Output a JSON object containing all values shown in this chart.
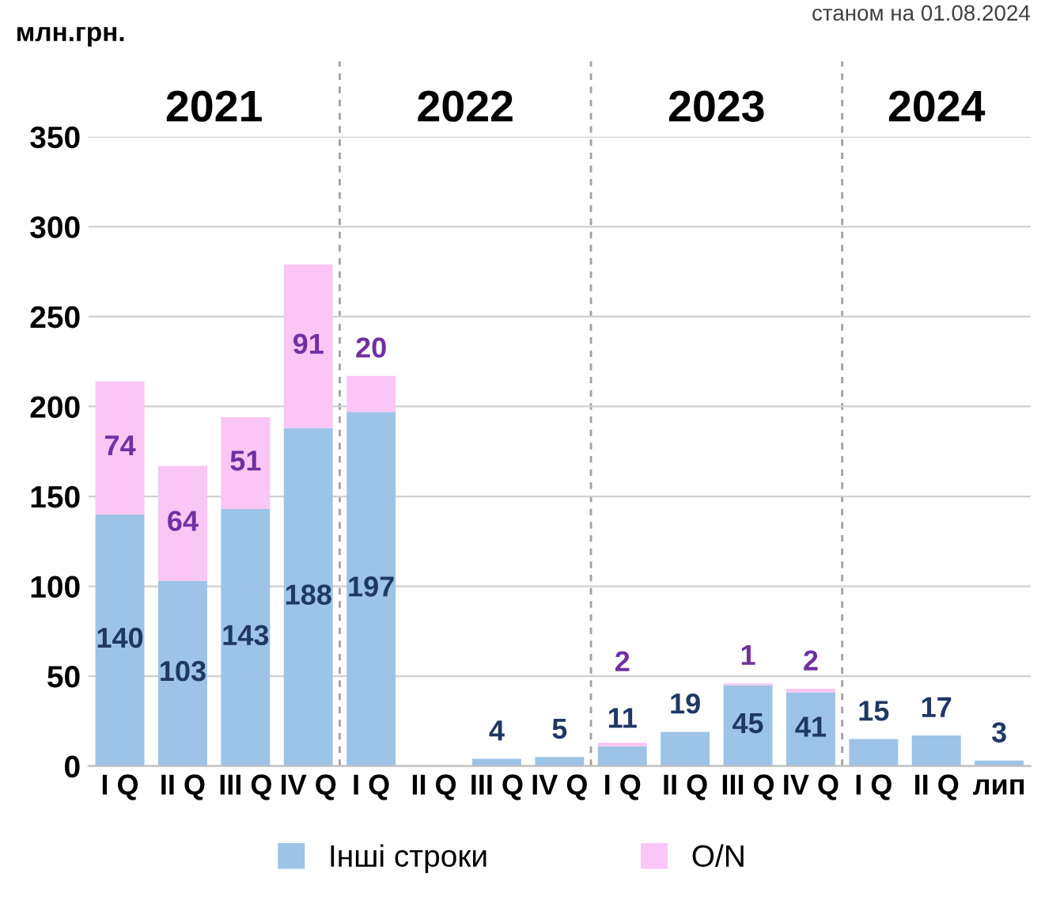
{
  "chart_data": {
    "type": "bar",
    "stacked": true,
    "ylabel": "млн.грн.",
    "categories": [
      "I Q",
      "II Q",
      "III Q",
      "IV Q",
      "I Q",
      "II Q",
      "III Q",
      "IV Q",
      "I Q",
      "II Q",
      "III Q",
      "IV Q",
      "I Q",
      "II Q",
      "лип"
    ],
    "series": [
      {
        "name": "Інші строки",
        "color": "#9dc3e6",
        "values": [
          140,
          103,
          143,
          188,
          197,
          null,
          4,
          5,
          11,
          19,
          45,
          41,
          15,
          17,
          3
        ]
      },
      {
        "name": "O/N",
        "color": "#f9c6f5",
        "values": [
          74,
          64,
          51,
          91,
          20,
          null,
          null,
          null,
          2,
          null,
          1,
          2,
          null,
          null,
          null
        ]
      }
    ],
    "data_labels": true,
    "ylim": [
      0,
      350
    ],
    "yticks": [
      0,
      50,
      100,
      150,
      200,
      250,
      300,
      350
    ],
    "grid": "y",
    "legend": "bottom",
    "annotations": [
      "станом на 01.08.2024",
      "2021",
      "2022",
      "2023",
      "2024"
    ]
  }
}
